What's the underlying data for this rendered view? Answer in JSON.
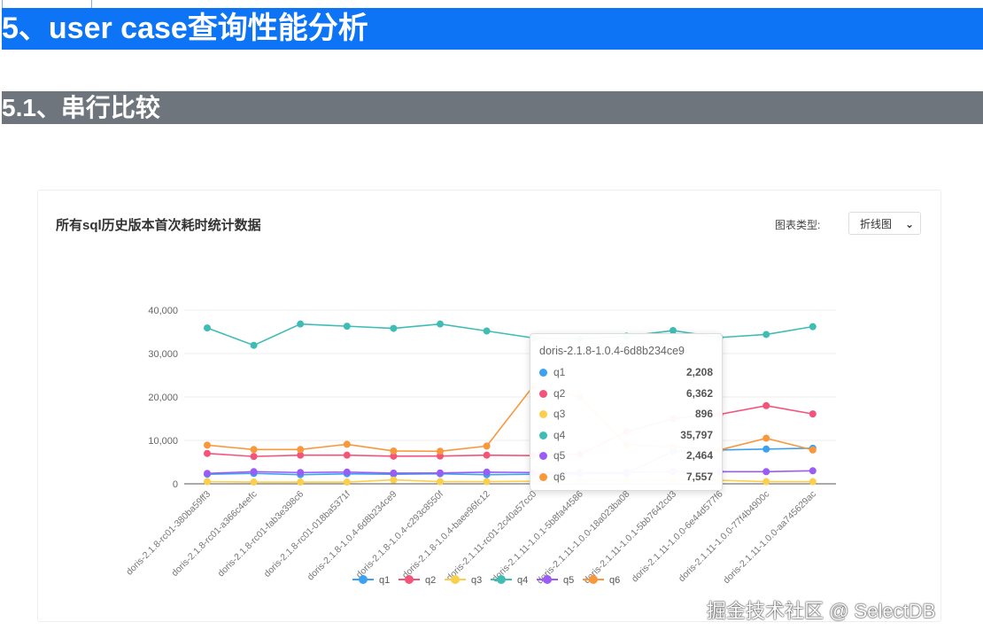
{
  "header": {
    "title": "5、user case查询性能分析",
    "subtitle": "5.1、串行比较"
  },
  "card": {
    "title": "所有sql历史版本首次耗时统计数据",
    "chart_type_label": "图表类型:",
    "chart_type_value": "折线图",
    "chevron_icon": "chevron-down-icon"
  },
  "chart_data": {
    "type": "line",
    "title": "所有sql历史版本首次耗时统计数据",
    "categories": [
      "doris-2.1.8-rc01-380ba59ff3",
      "doris-2.1.8-rc01-a366c4eefc",
      "doris-2.1.8-rc01-fab3e398c6",
      "doris-2.1.8-rc01-018ba5371f",
      "doris-2.1.8-1.0.4-6d8b234ce9",
      "doris-2.1.8-1.0.4-c293c8550f",
      "doris-2.1.8-1.0.4-baee96fc12",
      "doris-2.1.11-rc01-2c40a57cc0",
      "doris-2.1.11-1.0.1-5b8fa44586",
      "doris-2.1.11-1.0.0-18a023ba08",
      "doris-2.1.11-1.0.1-5bb7642cd3",
      "doris-2.1.11-1.0.0-6e44d577f6",
      "doris-2.1.11-1.0.0-77f4b4900c",
      "doris-2.1.11-1.0.0-aa745629ac"
    ],
    "ylim": [
      0,
      40000
    ],
    "yticks": [
      "0",
      "10,000",
      "20,000",
      "30,000",
      "40,000"
    ],
    "grid": true,
    "legend": "bottom",
    "series": [
      {
        "name": "q1",
        "color": "#3ba1f0",
        "values": [
          2200,
          2400,
          2100,
          2300,
          2208,
          2300,
          2100,
          2200,
          2300,
          2400,
          7500,
          7800,
          8000,
          8200
        ]
      },
      {
        "name": "q2",
        "color": "#f4537a",
        "values": [
          7000,
          6300,
          6600,
          6600,
          6362,
          6400,
          6600,
          6500,
          6800,
          12000,
          15000,
          16000,
          18000,
          16100
        ]
      },
      {
        "name": "q3",
        "color": "#fbcf4b",
        "values": [
          500,
          400,
          400,
          400,
          896,
          500,
          500,
          600,
          700,
          800,
          900,
          800,
          500,
          500
        ]
      },
      {
        "name": "q4",
        "color": "#3fbdb5",
        "values": [
          35900,
          31900,
          36800,
          36300,
          35797,
          36800,
          35200,
          33600,
          33400,
          34000,
          35300,
          33700,
          34400,
          36200
        ]
      },
      {
        "name": "q5",
        "color": "#9a5cf5",
        "values": [
          2400,
          2800,
          2600,
          2700,
          2464,
          2500,
          2700,
          2600,
          2600,
          2700,
          2800,
          2800,
          2800,
          3000
        ]
      },
      {
        "name": "q6",
        "color": "#f9973d",
        "values": [
          8900,
          7900,
          7900,
          9100,
          7557,
          7500,
          8700,
          22500,
          20000,
          9000,
          8500,
          7800,
          10500,
          7800
        ]
      }
    ]
  },
  "tooltip": {
    "title": "doris-2.1.8-1.0.4-6d8b234ce9",
    "rows": [
      {
        "name": "q1",
        "value": "2,208",
        "color": "#3ba1f0"
      },
      {
        "name": "q2",
        "value": "6,362",
        "color": "#f4537a"
      },
      {
        "name": "q3",
        "value": "896",
        "color": "#fbcf4b"
      },
      {
        "name": "q4",
        "value": "35,797",
        "color": "#3fbdb5"
      },
      {
        "name": "q5",
        "value": "2,464",
        "color": "#9a5cf5"
      },
      {
        "name": "q6",
        "value": "7,557",
        "color": "#f9973d"
      }
    ]
  },
  "watermark": "掘金技术社区 @ SelectDB"
}
